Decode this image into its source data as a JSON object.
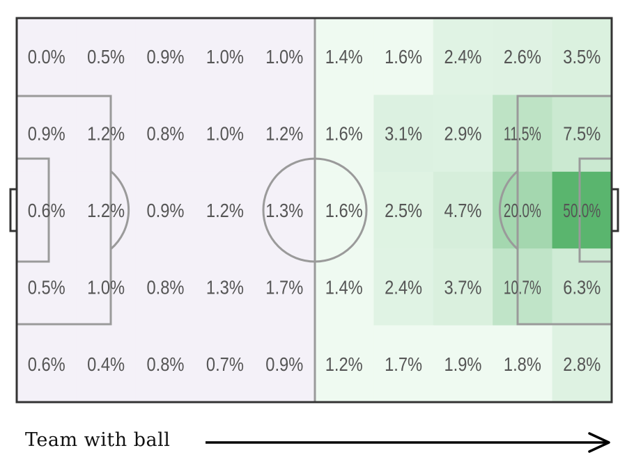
{
  "chart_data": {
    "type": "heatmap",
    "title": "",
    "rows": 5,
    "cols": 10,
    "values": [
      [
        0.0,
        0.5,
        0.9,
        1.0,
        1.0,
        1.4,
        1.6,
        2.4,
        2.6,
        3.5
      ],
      [
        0.9,
        1.2,
        0.8,
        1.0,
        1.2,
        1.6,
        3.1,
        2.9,
        11.5,
        7.5
      ],
      [
        0.6,
        1.2,
        0.9,
        1.2,
        1.3,
        1.6,
        2.5,
        4.7,
        20.0,
        50.0
      ],
      [
        0.5,
        1.0,
        0.8,
        1.3,
        1.7,
        1.4,
        2.4,
        3.7,
        10.7,
        6.3
      ],
      [
        0.6,
        0.4,
        0.8,
        0.7,
        0.9,
        1.2,
        1.7,
        1.9,
        1.8,
        2.8
      ]
    ],
    "labels": [
      [
        "0.0%",
        "0.5%",
        "0.9%",
        "1.0%",
        "1.0%",
        "1.4%",
        "1.6%",
        "2.4%",
        "2.6%",
        "3.5%"
      ],
      [
        "0.9%",
        "1.2%",
        "0.8%",
        "1.0%",
        "1.2%",
        "1.6%",
        "3.1%",
        "2.9%",
        "11.5%",
        "7.5%"
      ],
      [
        "0.6%",
        "1.2%",
        "0.9%",
        "1.2%",
        "1.3%",
        "1.6%",
        "2.5%",
        "4.7%",
        "20.0%",
        "50.0%"
      ],
      [
        "0.5%",
        "1.0%",
        "0.8%",
        "1.3%",
        "1.7%",
        "1.4%",
        "2.4%",
        "3.7%",
        "10.7%",
        "6.3%"
      ],
      [
        "0.6%",
        "0.4%",
        "0.8%",
        "0.7%",
        "0.9%",
        "1.2%",
        "1.7%",
        "1.9%",
        "1.8%",
        "2.8%"
      ]
    ],
    "colors": {
      "low": "#ffffff",
      "cold_tint": "#f4f1f8",
      "warm_tint": "#effaf1",
      "high": "#5ab56e",
      "lines": "#9a9a9a",
      "border": "#333333",
      "label_text": "#555555"
    }
  },
  "caption": {
    "text": "Team with ball"
  }
}
